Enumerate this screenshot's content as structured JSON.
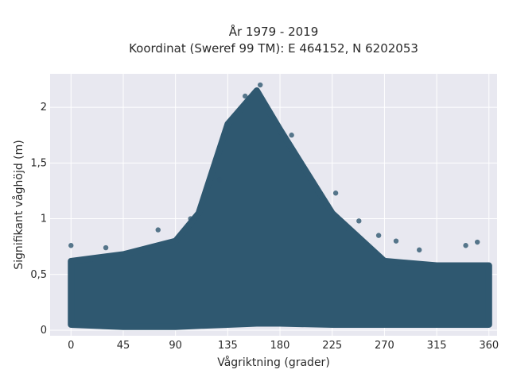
{
  "chart_data": {
    "type": "scatter",
    "title": "År 1979 - 2019",
    "subtitle": "Koordinat (Sweref 99 TM): E 464152, N 6202053",
    "xlabel": "Vågriktning (grader)",
    "ylabel": "Signifikant våghöjd (m)",
    "xlim": [
      -18,
      367
    ],
    "ylim": [
      -0.05,
      2.3
    ],
    "x_ticks": [
      0,
      45,
      90,
      135,
      180,
      225,
      270,
      315,
      360
    ],
    "x_tick_labels": [
      "0",
      "45",
      "90",
      "135",
      "180",
      "225",
      "270",
      "315",
      "360"
    ],
    "y_ticks": [
      0,
      0.5,
      1,
      1.5,
      2
    ],
    "y_tick_labels": [
      "0",
      "0,5",
      "1",
      "1,5",
      "2"
    ],
    "grid": true,
    "background": "#e8e8f0",
    "marker_color": "#2f5870",
    "envelope": [
      {
        "x": 0,
        "y_min": 0.05,
        "y_max": 0.62
      },
      {
        "x": 45,
        "y_min": 0.03,
        "y_max": 0.68
      },
      {
        "x": 90,
        "y_min": 0.03,
        "y_max": 0.8
      },
      {
        "x": 110,
        "y_min": 0.04,
        "y_max": 1.05
      },
      {
        "x": 135,
        "y_min": 0.05,
        "y_max": 1.85
      },
      {
        "x": 160,
        "y_min": 0.06,
        "y_max": 2.15
      },
      {
        "x": 180,
        "y_min": 0.06,
        "y_max": 1.8
      },
      {
        "x": 225,
        "y_min": 0.05,
        "y_max": 1.05
      },
      {
        "x": 270,
        "y_min": 0.05,
        "y_max": 0.62
      },
      {
        "x": 315,
        "y_min": 0.05,
        "y_max": 0.58
      },
      {
        "x": 360,
        "y_min": 0.05,
        "y_max": 0.58
      }
    ],
    "sample_points": [
      {
        "x": 0,
        "y": 0.76
      },
      {
        "x": 30,
        "y": 0.74
      },
      {
        "x": 75,
        "y": 0.9
      },
      {
        "x": 103,
        "y": 1.0
      },
      {
        "x": 128,
        "y": 1.35
      },
      {
        "x": 150,
        "y": 2.1
      },
      {
        "x": 163,
        "y": 2.2
      },
      {
        "x": 190,
        "y": 1.75
      },
      {
        "x": 228,
        "y": 1.23
      },
      {
        "x": 248,
        "y": 0.98
      },
      {
        "x": 265,
        "y": 0.85
      },
      {
        "x": 280,
        "y": 0.8
      },
      {
        "x": 300,
        "y": 0.72
      },
      {
        "x": 340,
        "y": 0.76
      },
      {
        "x": 350,
        "y": 0.79
      }
    ]
  }
}
